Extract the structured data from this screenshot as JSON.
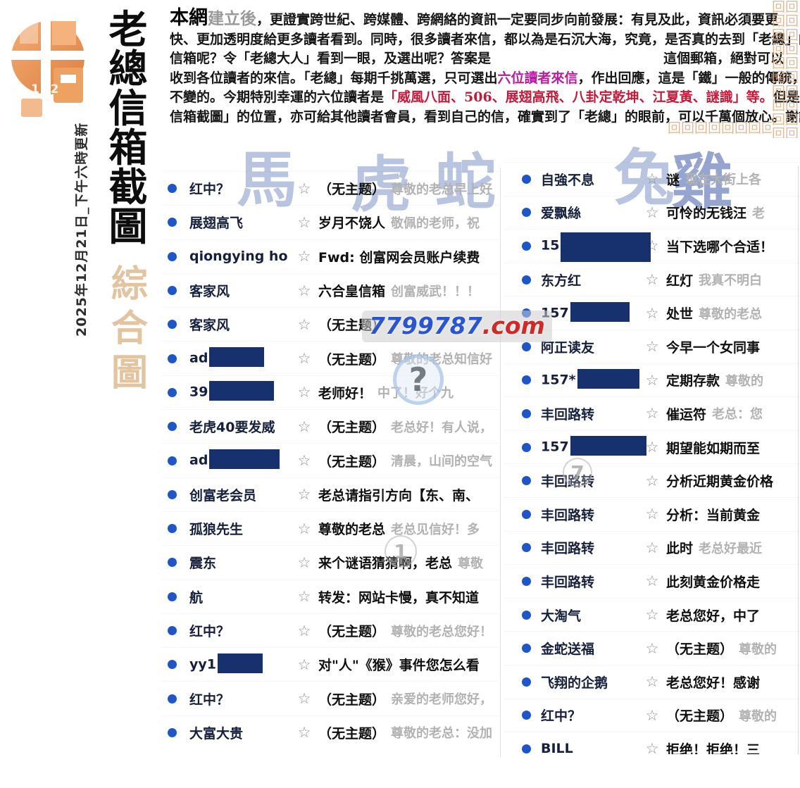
{
  "page_title": "老總信箱截圖",
  "logo": {
    "number": "132"
  },
  "side": {
    "title_chars": [
      "老",
      "總",
      "信",
      "箱",
      "截",
      "圖"
    ],
    "subtitle_chars": [
      "綜",
      "合",
      "圖"
    ],
    "date_note": "2025年12月21日_下午六時更新"
  },
  "header": {
    "lines": [
      [
        {
          "t": "本網",
          "s": "title"
        },
        {
          "t": "建立後",
          "s": "outline"
        },
        {
          "t": "，更證實跨世紀、跨媒體、跨網絡的資訊一定要同步向前發展：有見及此，資訊必須要更",
          "s": "normal"
        }
      ],
      [
        {
          "t": "快、更加透明度給更多讀者看到。同時，很多讀者來信，都以為是石沉大海，究竟，是否真的去到「老總」的",
          "s": "normal"
        }
      ],
      [
        {
          "t": "信箱呢？令「老總大人」看到一眼，及選出呢？答案是",
          "s": "normal"
        },
        {
          "t": "",
          "s": "gap"
        },
        {
          "t": "這個郵箱，絕對可以",
          "s": "normal"
        }
      ],
      [
        {
          "t": "收到各位讀者的來信。「老總」每期千挑萬選，只可選出",
          "s": "normal"
        },
        {
          "t": "六位讀者來信",
          "s": "purple"
        },
        {
          "t": "，作出回應，這是「鐵」一般的傳統，是",
          "s": "normal"
        }
      ],
      [
        {
          "t": "不變的。今期特別幸運的六位讀者是",
          "s": "normal"
        },
        {
          "t": "「威風八面、506、展翅高飛、八卦定乾坤、江夏黃、謎識」等。",
          "s": "red"
        },
        {
          "t": "但是這個「老總",
          "s": "normal"
        }
      ],
      [
        {
          "t": "信箱截圖」的位置，亦可給其他讀者會員，看到自己的信，確實到了「老總」的眼前，可以千萬個放心。謝謝。",
          "s": "normal"
        }
      ]
    ]
  },
  "watermarks": {
    "zodiac_chars": [
      "馬",
      "虎",
      "蛇",
      "兔",
      "雞"
    ],
    "site_number": "7799787",
    "site_tld": ".com",
    "globe_glyph": "?",
    "circle_one": "1",
    "circle_seven": "7"
  },
  "icons": {
    "star": "☆",
    "border_pattern_char": "回"
  },
  "mail": {
    "left": [
      {
        "sender": "红中？",
        "redact_w": 0,
        "subject": "（无主题）",
        "preview": "尊敬的老总早上好"
      },
      {
        "sender": "展翅高飞",
        "redact_w": 0,
        "subject": "岁月不饶人",
        "preview": "敬佩的老师，祝"
      },
      {
        "sender": "qiongying ho",
        "redact_w": 0,
        "subject": "Fwd: 创富网会员账户续费",
        "preview": ""
      },
      {
        "sender": "客家风",
        "redact_w": 0,
        "subject": "六合皇信箱",
        "preview": "创富威武！！！"
      },
      {
        "sender": "客家风",
        "redact_w": 0,
        "subject": "（无主题）",
        "preview": ""
      },
      {
        "sender": "ad",
        "redact_w": 78,
        "subject": "（无主题）",
        "preview": "尊敬的老总知信好"
      },
      {
        "sender": "39",
        "redact_w": 92,
        "subject": "老师好！",
        "preview": "中了！好个九"
      },
      {
        "sender": "老虎40要发威",
        "redact_w": 0,
        "subject": "（无主题）",
        "preview": "老总好！有人说，"
      },
      {
        "sender": "ad",
        "redact_w": 100,
        "subject": "（无主题）",
        "preview": "清晨，山间的空气"
      },
      {
        "sender": "创富老会员",
        "redact_w": 0,
        "subject": "老总请指引方向【东、南、",
        "preview": ""
      },
      {
        "sender": "孤狼先生",
        "redact_w": 0,
        "subject": "尊敬的老总",
        "preview": "老总见信好！多"
      },
      {
        "sender": "震东",
        "redact_w": 0,
        "subject": "来个谜语猜猜啊，老总",
        "preview": "尊敬"
      },
      {
        "sender": "航",
        "redact_w": 0,
        "subject": "转发：网站卡慢，真不知道",
        "preview": ""
      },
      {
        "sender": "红中？",
        "redact_w": 0,
        "subject": "（无主题）",
        "preview": "尊敬的老总您好！"
      },
      {
        "sender": "yy1",
        "redact_w": 64,
        "subject": "对\"人\"《猴》事件您怎么看",
        "preview": ""
      },
      {
        "sender": "红中？",
        "redact_w": 0,
        "subject": "（无主题）",
        "preview": "亲爱的老师您好，"
      },
      {
        "sender": "大富大贵",
        "redact_w": 0,
        "subject": "（无主题）",
        "preview": "尊敬的老总：没加"
      }
    ],
    "right": [
      {
        "sender": "自強不息",
        "redact_w": 0,
        "subject": "谜",
        "preview": "现在大街上各"
      },
      {
        "sender": "爱飘絲",
        "redact_w": 0,
        "subject": "可怜的无钱汪",
        "preview": "老"
      },
      {
        "sender": "15",
        "redact_w": 128,
        "tall": true,
        "subject": "当下选哪个合适！",
        "preview": ""
      },
      {
        "sender": "东方红",
        "redact_w": 0,
        "subject": "红灯",
        "preview": "我真不明白"
      },
      {
        "sender": "157",
        "redact_w": 84,
        "subject": "处世",
        "preview": "尊敬的老总"
      },
      {
        "sender": "阿正读友",
        "redact_w": 0,
        "subject": "今早一个女同事",
        "preview": ""
      },
      {
        "sender": "157*",
        "redact_w": 88,
        "subject": "定期存款",
        "preview": "尊敬的"
      },
      {
        "sender": "丰回路转",
        "redact_w": 0,
        "subject": "催运符",
        "preview": "老总：您"
      },
      {
        "sender": "157",
        "redact_w": 108,
        "subject": "期望能如期而至",
        "preview": ""
      },
      {
        "sender": "丰回路转",
        "redact_w": 0,
        "subject": "分析近期黄金价格",
        "preview": ""
      },
      {
        "sender": "丰回路转",
        "redact_w": 0,
        "subject": "分析：当前黄金",
        "preview": ""
      },
      {
        "sender": "丰回路转",
        "redact_w": 0,
        "subject": "此时",
        "preview": "老总好最近"
      },
      {
        "sender": "丰回路转",
        "redact_w": 0,
        "subject": "此刻黄金价格走",
        "preview": ""
      },
      {
        "sender": "大淘气",
        "redact_w": 0,
        "subject": "老总您好，中了",
        "preview": ""
      },
      {
        "sender": "金蛇送福",
        "redact_w": 0,
        "subject": "（无主题）",
        "preview": "尊敬的"
      },
      {
        "sender": "飞翔的企鹅",
        "redact_w": 0,
        "subject": "老总您好！感谢",
        "preview": ""
      },
      {
        "sender": "红中？",
        "redact_w": 0,
        "subject": "（无主题）",
        "preview": "尊敬的"
      },
      {
        "sender": "BILL",
        "redact_w": 0,
        "subject": "拒绝！拒绝！三",
        "preview": ""
      }
    ]
  },
  "colors": {
    "accent_orange": "#e8954f",
    "unread_dot": "#1e56c8",
    "redaction_navy": "#16316e",
    "highlight_purple": "#b41fa0",
    "highlight_red": "#c41a3a",
    "watermark_blue": "#8094c6"
  }
}
